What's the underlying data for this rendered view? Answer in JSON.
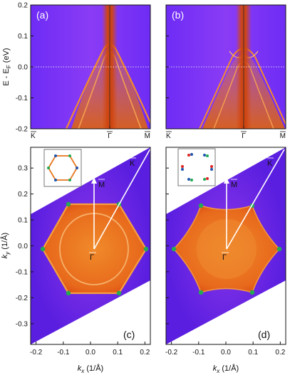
{
  "figure": {
    "panels": {
      "a": {
        "label": "(a)"
      },
      "b": {
        "label": "(b)"
      },
      "c": {
        "label": "(c)"
      },
      "d": {
        "label": "(d)"
      }
    },
    "top_axes": {
      "ylabel": "E - E",
      "ylabel_sub": "F",
      "ylabel_unit": " (eV)",
      "yticks": [
        "0.2",
        "0.1",
        "0.0",
        "-0.1",
        "-0.2"
      ],
      "ytick_values": [
        0.2,
        0.1,
        0.0,
        -0.1,
        -0.2
      ],
      "xticks": [
        "K",
        "Γ",
        "M"
      ]
    },
    "bottom_axes": {
      "ylabel": "k",
      "ylabel_sub": "y",
      "ylabel_unit": " (1/Å)",
      "xlabel": "k",
      "xlabel_sub": "x",
      "xlabel_unit": " (1/Å)",
      "yticks": [
        "0.3",
        "0.2",
        "0.1",
        "0.0",
        "-0.1",
        "-0.2",
        "-0.3"
      ],
      "ytick_values": [
        0.3,
        0.2,
        0.1,
        0.0,
        -0.1,
        -0.2,
        -0.3
      ],
      "xticks": [
        "-0.2",
        "-0.1",
        "0.0",
        "0.1",
        "0.2"
      ],
      "xtick_values": [
        -0.2,
        -0.1,
        0.0,
        0.1,
        0.2
      ]
    },
    "bz_labels": {
      "gamma": "Γ",
      "m": "M",
      "k": "K"
    },
    "colors": {
      "background_violet": "#7a3cff",
      "band_orange": "#e8761c",
      "band_dark": "#c2410c",
      "fermi_line": "#ffffff",
      "node_blue": "#2255aa",
      "node_green": "#22aa55",
      "node_red": "#dd2222"
    }
  },
  "chart_data": [
    {
      "type": "heatmap",
      "title": "(a)",
      "xlabel": "",
      "ylabel": "E - E_F (eV)",
      "ylim": [
        -0.2,
        0.2
      ],
      "x_ticks": [
        "K",
        "Γ",
        "M"
      ],
      "grid": false
    },
    {
      "type": "heatmap",
      "title": "(b)",
      "xlabel": "",
      "ylabel": "E - E_F (eV)",
      "ylim": [
        -0.2,
        0.2
      ],
      "x_ticks": [
        "K",
        "Γ",
        "M"
      ],
      "grid": false
    },
    {
      "type": "heatmap",
      "title": "(c)",
      "xlabel": "k_x (1/Å)",
      "ylabel": "k_y (1/Å)",
      "xlim": [
        -0.22,
        0.22
      ],
      "ylim": [
        -0.38,
        0.38
      ],
      "grid": false
    },
    {
      "type": "heatmap",
      "title": "(d)",
      "xlabel": "k_x (1/Å)",
      "ylabel": "k_y (1/Å)",
      "xlim": [
        -0.22,
        0.22
      ],
      "ylim": [
        -0.38,
        0.38
      ],
      "grid": false
    }
  ]
}
